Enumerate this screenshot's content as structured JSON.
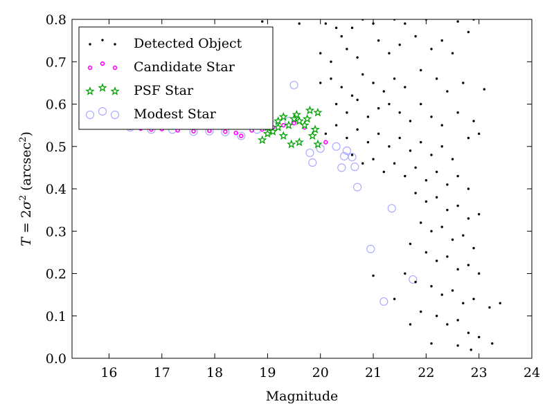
{
  "chart_data": {
    "type": "scatter",
    "title": "",
    "xlabel": "Magnitude",
    "ylabel": {
      "lhs": "T",
      "eq": " = 2",
      "sym": "σ",
      "sup": "2",
      "pre": " (arcsec",
      "sup2": "2",
      "post": ")"
    },
    "xlim": [
      15.3,
      24
    ],
    "ylim": [
      0,
      0.8
    ],
    "xticks": [
      16,
      17,
      18,
      19,
      20,
      21,
      22,
      23,
      24
    ],
    "yticks": [
      "0.0",
      "0.1",
      "0.2",
      "0.3",
      "0.4",
      "0.5",
      "0.6",
      "0.7",
      "0.8"
    ],
    "legend_position": "top-left",
    "series": [
      {
        "name": "Detected Object",
        "marker": "dot",
        "color": "#000000",
        "points": [
          [
            18.9,
            0.795
          ],
          [
            19.6,
            0.79
          ],
          [
            20.1,
            0.79
          ],
          [
            20.3,
            0.78
          ],
          [
            20.4,
            0.76
          ],
          [
            20.6,
            0.78
          ],
          [
            20.8,
            0.8
          ],
          [
            21.0,
            0.79
          ],
          [
            21.4,
            0.8
          ],
          [
            21.6,
            0.79
          ],
          [
            22.0,
            0.8
          ],
          [
            22.6,
            0.795
          ],
          [
            22.9,
            0.8
          ],
          [
            20.0,
            0.72
          ],
          [
            20.2,
            0.7
          ],
          [
            20.5,
            0.73
          ],
          [
            20.7,
            0.71
          ],
          [
            21.1,
            0.75
          ],
          [
            21.3,
            0.72
          ],
          [
            21.5,
            0.74
          ],
          [
            21.8,
            0.76
          ],
          [
            22.1,
            0.73
          ],
          [
            22.3,
            0.75
          ],
          [
            22.5,
            0.72
          ],
          [
            22.8,
            0.77
          ],
          [
            20.2,
            0.66
          ],
          [
            20.4,
            0.64
          ],
          [
            20.6,
            0.62
          ],
          [
            20.8,
            0.67
          ],
          [
            21.0,
            0.65
          ],
          [
            21.2,
            0.63
          ],
          [
            21.4,
            0.66
          ],
          [
            21.6,
            0.64
          ],
          [
            21.9,
            0.68
          ],
          [
            22.2,
            0.66
          ],
          [
            22.4,
            0.63
          ],
          [
            22.7,
            0.65
          ],
          [
            23.1,
            0.635
          ],
          [
            20.3,
            0.6
          ],
          [
            20.5,
            0.58
          ],
          [
            20.7,
            0.61
          ],
          [
            20.9,
            0.57
          ],
          [
            21.1,
            0.59
          ],
          [
            21.3,
            0.6
          ],
          [
            21.5,
            0.58
          ],
          [
            21.7,
            0.56
          ],
          [
            21.9,
            0.6
          ],
          [
            22.1,
            0.57
          ],
          [
            22.3,
            0.55
          ],
          [
            22.6,
            0.58
          ],
          [
            22.9,
            0.56
          ],
          [
            20.1,
            0.53
          ],
          [
            20.3,
            0.55
          ],
          [
            20.5,
            0.52
          ],
          [
            20.7,
            0.54
          ],
          [
            20.9,
            0.51
          ],
          [
            21.1,
            0.53
          ],
          [
            21.3,
            0.5
          ],
          [
            21.5,
            0.52
          ],
          [
            21.7,
            0.49
          ],
          [
            21.9,
            0.51
          ],
          [
            22.1,
            0.48
          ],
          [
            22.3,
            0.5
          ],
          [
            22.5,
            0.47
          ],
          [
            22.8,
            0.52
          ],
          [
            23.0,
            0.53
          ],
          [
            20.6,
            0.48
          ],
          [
            20.8,
            0.46
          ],
          [
            21.0,
            0.47
          ],
          [
            21.2,
            0.44
          ],
          [
            21.4,
            0.46
          ],
          [
            21.6,
            0.43
          ],
          [
            21.8,
            0.45
          ],
          [
            22.0,
            0.42
          ],
          [
            22.2,
            0.44
          ],
          [
            22.4,
            0.41
          ],
          [
            22.6,
            0.43
          ],
          [
            22.8,
            0.4
          ],
          [
            21.8,
            0.39
          ],
          [
            22.0,
            0.37
          ],
          [
            22.2,
            0.38
          ],
          [
            22.4,
            0.35
          ],
          [
            22.6,
            0.36
          ],
          [
            22.8,
            0.33
          ],
          [
            23.0,
            0.34
          ],
          [
            21.9,
            0.32
          ],
          [
            22.1,
            0.3
          ],
          [
            22.3,
            0.31
          ],
          [
            22.5,
            0.28
          ],
          [
            22.7,
            0.29
          ],
          [
            22.9,
            0.26
          ],
          [
            21.7,
            0.27
          ],
          [
            22.0,
            0.25
          ],
          [
            22.2,
            0.23
          ],
          [
            22.4,
            0.24
          ],
          [
            22.6,
            0.21
          ],
          [
            22.8,
            0.22
          ],
          [
            23.0,
            0.2
          ],
          [
            21.6,
            0.2
          ],
          [
            21.8,
            0.18
          ],
          [
            22.1,
            0.17
          ],
          [
            22.3,
            0.15
          ],
          [
            22.5,
            0.16
          ],
          [
            22.7,
            0.13
          ],
          [
            22.9,
            0.14
          ],
          [
            23.2,
            0.12
          ],
          [
            21.4,
            0.14
          ],
          [
            21.9,
            0.11
          ],
          [
            22.2,
            0.1
          ],
          [
            22.4,
            0.08
          ],
          [
            22.6,
            0.09
          ],
          [
            22.8,
            0.06
          ],
          [
            23.0,
            0.05
          ],
          [
            21.7,
            0.08
          ],
          [
            22.1,
            0.035
          ],
          [
            22.6,
            0.03
          ],
          [
            22.85,
            0.02
          ],
          [
            23.25,
            0.035
          ],
          [
            23.4,
            0.13
          ],
          [
            21.0,
            0.195
          ],
          [
            20.0,
            0.65
          ]
        ]
      },
      {
        "name": "Candidate Star",
        "marker": "ring",
        "color": "#ff00ff",
        "points": [
          [
            15.5,
            0.552
          ],
          [
            15.9,
            0.55
          ],
          [
            16.1,
            0.546
          ],
          [
            16.4,
            0.544
          ],
          [
            16.6,
            0.542
          ],
          [
            16.8,
            0.54
          ],
          [
            17.0,
            0.541
          ],
          [
            17.3,
            0.538
          ],
          [
            17.6,
            0.536
          ],
          [
            17.9,
            0.537
          ],
          [
            18.2,
            0.535
          ],
          [
            18.4,
            0.532
          ],
          [
            18.5,
            0.525
          ],
          [
            18.7,
            0.538
          ],
          [
            18.9,
            0.54
          ],
          [
            19.1,
            0.545
          ],
          [
            19.3,
            0.55
          ],
          [
            19.5,
            0.555
          ],
          [
            19.7,
            0.545
          ],
          [
            20.1,
            0.51
          ]
        ]
      },
      {
        "name": "PSF Star",
        "marker": "star",
        "color": "#00a000",
        "points": [
          [
            18.9,
            0.555
          ],
          [
            19.0,
            0.545
          ],
          [
            19.1,
            0.535
          ],
          [
            19.2,
            0.56
          ],
          [
            19.3,
            0.57
          ],
          [
            19.4,
            0.55
          ],
          [
            19.5,
            0.565
          ],
          [
            19.55,
            0.575
          ],
          [
            19.6,
            0.56
          ],
          [
            19.7,
            0.55
          ],
          [
            19.75,
            0.565
          ],
          [
            19.8,
            0.585
          ],
          [
            19.85,
            0.525
          ],
          [
            19.9,
            0.54
          ],
          [
            19.95,
            0.58
          ],
          [
            19.95,
            0.505
          ],
          [
            19.6,
            0.51
          ],
          [
            19.45,
            0.505
          ],
          [
            19.3,
            0.525
          ],
          [
            18.9,
            0.515
          ],
          [
            19.0,
            0.53
          ],
          [
            19.2,
            0.545
          ]
        ]
      },
      {
        "name": "Modest Star",
        "marker": "circle",
        "color": "#aaaaff",
        "points": [
          [
            15.5,
            0.555
          ],
          [
            15.9,
            0.578
          ],
          [
            16.1,
            0.55
          ],
          [
            16.4,
            0.545
          ],
          [
            16.8,
            0.54
          ],
          [
            17.2,
            0.54
          ],
          [
            17.6,
            0.535
          ],
          [
            17.9,
            0.536
          ],
          [
            18.2,
            0.534
          ],
          [
            18.5,
            0.525
          ],
          [
            18.8,
            0.54
          ],
          [
            19.1,
            0.55
          ],
          [
            19.4,
            0.56
          ],
          [
            19.5,
            0.645
          ],
          [
            19.8,
            0.485
          ],
          [
            19.85,
            0.462
          ],
          [
            20.0,
            0.495
          ],
          [
            20.3,
            0.5
          ],
          [
            20.45,
            0.477
          ],
          [
            20.5,
            0.49
          ],
          [
            20.6,
            0.475
          ],
          [
            20.4,
            0.45
          ],
          [
            20.65,
            0.452
          ],
          [
            20.7,
            0.404
          ],
          [
            21.35,
            0.354
          ],
          [
            20.95,
            0.258
          ],
          [
            21.75,
            0.186
          ],
          [
            21.2,
            0.134
          ]
        ]
      }
    ]
  }
}
